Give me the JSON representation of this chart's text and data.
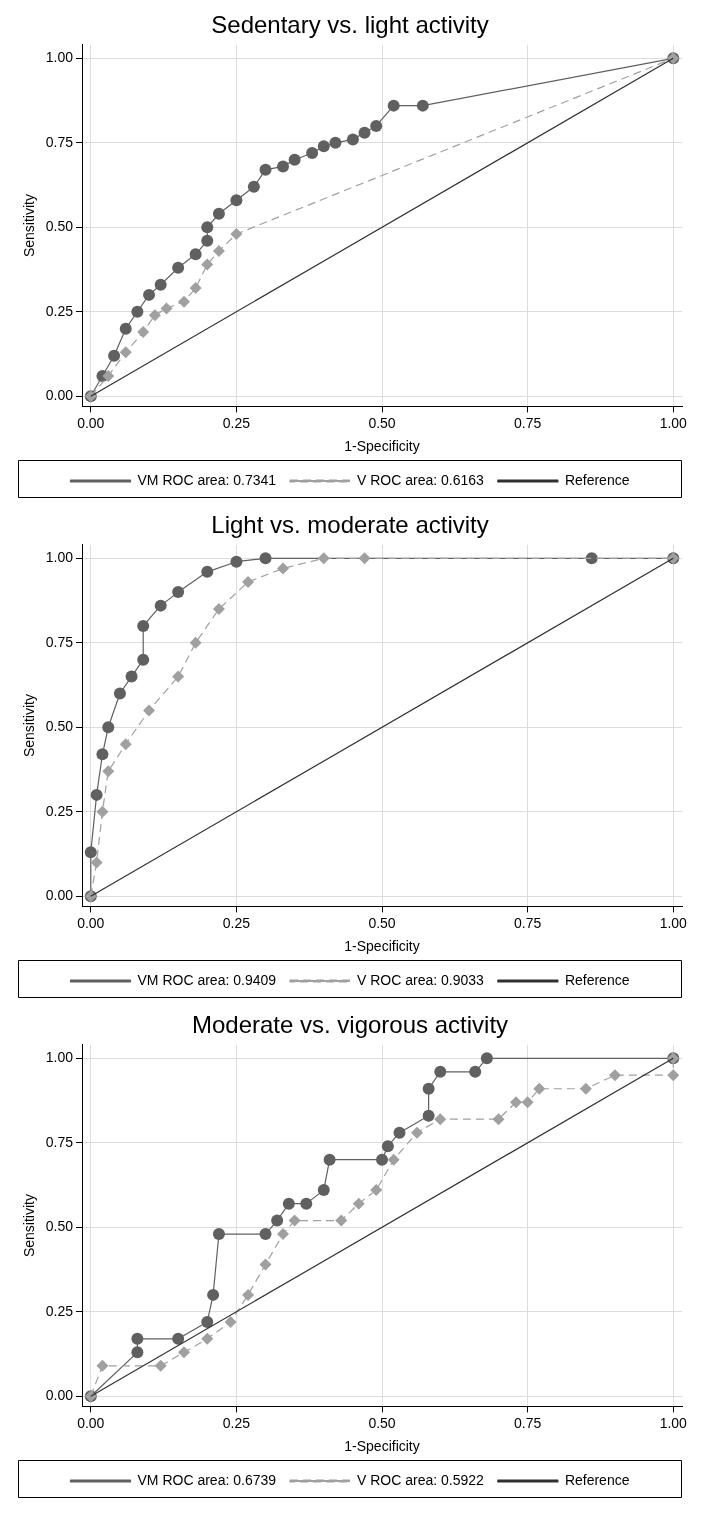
{
  "chart_data": [
    {
      "type": "line",
      "title": "Sedentary vs. light activity",
      "xlabel": "1-Specificity",
      "ylabel": "Sensitivity",
      "xlim": [
        -0.015,
        1.015
      ],
      "ylim": [
        -0.03,
        1.04
      ],
      "xticks": [
        {
          "value": 0,
          "label": "0.00"
        },
        {
          "value": 0.25,
          "label": "0.25"
        },
        {
          "value": 0.5,
          "label": "0.50"
        },
        {
          "value": 0.75,
          "label": "0.75"
        },
        {
          "value": 1,
          "label": "1.00"
        }
      ],
      "yticks": [
        {
          "value": 0,
          "label": "0.00"
        },
        {
          "value": 0.25,
          "label": "0.25"
        },
        {
          "value": 0.5,
          "label": "0.50"
        },
        {
          "value": 0.75,
          "label": "0.75"
        },
        {
          "value": 1,
          "label": "1.00"
        }
      ],
      "grid": true,
      "legend": "bottom",
      "series": [
        {
          "name": "VM ROC area: 0.7341",
          "color": "#606060",
          "marker": "circle",
          "line_style": "solid",
          "x": [
            0,
            0.02,
            0.04,
            0.06,
            0.08,
            0.1,
            0.12,
            0.15,
            0.18,
            0.2,
            0.2,
            0.22,
            0.25,
            0.28,
            0.3,
            0.33,
            0.35,
            0.38,
            0.4,
            0.42,
            0.45,
            0.47,
            0.49,
            0.52,
            0.57,
            1
          ],
          "values": [
            0,
            0.06,
            0.12,
            0.2,
            0.25,
            0.3,
            0.33,
            0.38,
            0.42,
            0.46,
            0.5,
            0.54,
            0.58,
            0.62,
            0.67,
            0.68,
            0.7,
            0.72,
            0.74,
            0.75,
            0.76,
            0.78,
            0.8,
            0.86,
            0.86,
            1
          ]
        },
        {
          "name": "V ROC area: 0.6163",
          "color": "#a0a0a0",
          "marker": "diamond",
          "line_style": "dashed",
          "x": [
            0,
            0.03,
            0.06,
            0.09,
            0.11,
            0.13,
            0.16,
            0.18,
            0.2,
            0.22,
            0.25,
            1
          ],
          "values": [
            0,
            0.06,
            0.13,
            0.19,
            0.24,
            0.26,
            0.28,
            0.32,
            0.39,
            0.43,
            0.48,
            1
          ]
        },
        {
          "name": "Reference",
          "color": "#303030",
          "marker": "none",
          "line_style": "solid",
          "x": [
            0,
            1
          ],
          "values": [
            0,
            1
          ]
        }
      ]
    },
    {
      "type": "line",
      "title": "Light vs. moderate activity",
      "xlabel": "1-Specificity",
      "ylabel": "Sensitivity",
      "xlim": [
        -0.015,
        1.015
      ],
      "ylim": [
        -0.03,
        1.04
      ],
      "xticks": [
        {
          "value": 0,
          "label": "0.00"
        },
        {
          "value": 0.25,
          "label": "0.25"
        },
        {
          "value": 0.5,
          "label": "0.50"
        },
        {
          "value": 0.75,
          "label": "0.75"
        },
        {
          "value": 1,
          "label": "1.00"
        }
      ],
      "yticks": [
        {
          "value": 0,
          "label": "0.00"
        },
        {
          "value": 0.25,
          "label": "0.25"
        },
        {
          "value": 0.5,
          "label": "0.50"
        },
        {
          "value": 0.75,
          "label": "0.75"
        },
        {
          "value": 1,
          "label": "1.00"
        }
      ],
      "grid": true,
      "legend": "bottom",
      "series": [
        {
          "name": "VM ROC area: 0.9409",
          "color": "#606060",
          "marker": "circle",
          "line_style": "solid",
          "x": [
            0,
            0,
            0.01,
            0.02,
            0.03,
            0.05,
            0.07,
            0.09,
            0.09,
            0.12,
            0.15,
            0.2,
            0.25,
            0.3,
            0.86,
            1
          ],
          "values": [
            0,
            0.13,
            0.3,
            0.42,
            0.5,
            0.6,
            0.65,
            0.7,
            0.8,
            0.86,
            0.9,
            0.96,
            0.99,
            1,
            1,
            1
          ]
        },
        {
          "name": "V ROC area: 0.9033",
          "color": "#a0a0a0",
          "marker": "diamond",
          "line_style": "dashed",
          "x": [
            0,
            0.01,
            0.02,
            0.03,
            0.06,
            0.1,
            0.15,
            0.18,
            0.22,
            0.27,
            0.33,
            0.4,
            0.47,
            1
          ],
          "values": [
            0,
            0.1,
            0.25,
            0.37,
            0.45,
            0.55,
            0.65,
            0.75,
            0.85,
            0.93,
            0.97,
            1,
            1,
            1
          ]
        },
        {
          "name": "Reference",
          "color": "#303030",
          "marker": "none",
          "line_style": "solid",
          "x": [
            0,
            1
          ],
          "values": [
            0,
            1
          ]
        }
      ]
    },
    {
      "type": "line",
      "title": "Moderate vs. vigorous activity",
      "xlabel": "1-Specificity",
      "ylabel": "Sensitivity",
      "xlim": [
        -0.015,
        1.015
      ],
      "ylim": [
        -0.03,
        1.04
      ],
      "xticks": [
        {
          "value": 0,
          "label": "0.00"
        },
        {
          "value": 0.25,
          "label": "0.25"
        },
        {
          "value": 0.5,
          "label": "0.50"
        },
        {
          "value": 0.75,
          "label": "0.75"
        },
        {
          "value": 1,
          "label": "1.00"
        }
      ],
      "yticks": [
        {
          "value": 0,
          "label": "0.00"
        },
        {
          "value": 0.25,
          "label": "0.25"
        },
        {
          "value": 0.5,
          "label": "0.50"
        },
        {
          "value": 0.75,
          "label": "0.75"
        },
        {
          "value": 1,
          "label": "1.00"
        }
      ],
      "grid": true,
      "legend": "bottom",
      "series": [
        {
          "name": "VM ROC area: 0.6739",
          "color": "#606060",
          "marker": "circle",
          "line_style": "solid",
          "x": [
            0,
            0.08,
            0.08,
            0.15,
            0.2,
            0.21,
            0.22,
            0.3,
            0.32,
            0.34,
            0.37,
            0.4,
            0.41,
            0.5,
            0.51,
            0.53,
            0.58,
            0.58,
            0.6,
            0.66,
            0.68,
            1
          ],
          "values": [
            0,
            0.13,
            0.17,
            0.17,
            0.22,
            0.3,
            0.48,
            0.48,
            0.52,
            0.57,
            0.57,
            0.61,
            0.7,
            0.7,
            0.74,
            0.78,
            0.83,
            0.91,
            0.96,
            0.96,
            1,
            1
          ]
        },
        {
          "name": "V ROC area: 0.5922",
          "color": "#a0a0a0",
          "marker": "diamond",
          "line_style": "dashed",
          "x": [
            0,
            0.02,
            0.12,
            0.16,
            0.2,
            0.24,
            0.27,
            0.3,
            0.33,
            0.35,
            0.43,
            0.46,
            0.49,
            0.52,
            0.56,
            0.6,
            0.7,
            0.73,
            0.75,
            0.77,
            0.85,
            0.9,
            1,
            1
          ],
          "values": [
            0,
            0.09,
            0.09,
            0.13,
            0.17,
            0.22,
            0.3,
            0.39,
            0.48,
            0.52,
            0.52,
            0.57,
            0.61,
            0.7,
            0.78,
            0.82,
            0.82,
            0.87,
            0.87,
            0.91,
            0.91,
            0.95,
            0.95,
            1
          ]
        },
        {
          "name": "Reference",
          "color": "#303030",
          "marker": "none",
          "line_style": "solid",
          "x": [
            0,
            1
          ],
          "values": [
            0,
            1
          ]
        }
      ]
    }
  ]
}
